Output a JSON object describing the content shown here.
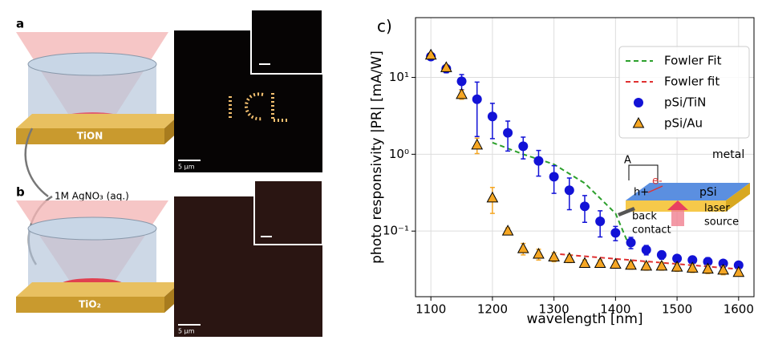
{
  "panels": {
    "a": {
      "label": "a",
      "substrate": "TiON",
      "scale_bar": "5 µm"
    },
    "reagent": "1M AgNO₃ (aq.)",
    "b": {
      "label": "b",
      "substrate": "TiO₂",
      "scale_bar": "5 µm"
    }
  },
  "chart_data": {
    "type": "scatter",
    "panel_label": "c)",
    "xlabel": "wavelength [nm]",
    "ylabel": "photo responsivity |PR| [mA/W]",
    "xlim": [
      1075,
      1625
    ],
    "xticks": [
      1100,
      1200,
      1300,
      1400,
      1500,
      1600
    ],
    "ylim": [
      0.014,
      60
    ],
    "yscale": "log",
    "yticks": [
      {
        "value": 0.1,
        "label": "10⁻¹"
      },
      {
        "value": 1,
        "label": "10⁰"
      },
      {
        "value": 10,
        "label": "10¹"
      }
    ],
    "grid": true,
    "legend": "upper right",
    "x": [
      1100,
      1125,
      1150,
      1175,
      1200,
      1225,
      1250,
      1275,
      1300,
      1325,
      1350,
      1375,
      1400,
      1425,
      1450,
      1475,
      1500,
      1525,
      1550,
      1575,
      1600
    ],
    "series": [
      {
        "name": "Fowler Fit",
        "color": "#2ca02c",
        "style": "dashed",
        "x": [
          1200,
          1250,
          1300,
          1350,
          1400,
          1425
        ],
        "values": [
          1.42,
          1.0,
          0.74,
          0.42,
          0.17,
          0.057
        ]
      },
      {
        "name": "Fowler fit",
        "color": "#e03030",
        "style": "dashed",
        "x": [
          1310,
          1600
        ],
        "values": [
          0.05,
          0.032
        ]
      },
      {
        "name": "pSi/TiN",
        "color": "#1212d6",
        "marker": "circle",
        "values": [
          18.7,
          13,
          8.9,
          5.2,
          3.1,
          1.9,
          1.27,
          0.82,
          0.51,
          0.34,
          0.21,
          0.134,
          0.095,
          0.071,
          0.057,
          0.049,
          0.044,
          0.042,
          0.04,
          0.038,
          0.036
        ],
        "errors": [
          1.5,
          1.5,
          2,
          3.5,
          1.5,
          0.8,
          0.4,
          0.3,
          0.2,
          0.15,
          0.08,
          0.05,
          0.02,
          0.012,
          0.008,
          0.006,
          0.005,
          0.005,
          0.005,
          0.004,
          0.004
        ]
      },
      {
        "name": "pSi/Au",
        "color": "#f5a623",
        "marker": "triangle",
        "values": [
          19.5,
          13.4,
          6.0,
          1.32,
          0.27,
          0.1,
          0.059,
          0.05,
          0.046,
          0.044,
          0.038,
          0.038,
          0.037,
          0.036,
          0.035,
          0.035,
          0.034,
          0.033,
          0.032,
          0.031,
          0.029
        ],
        "errors": [
          1.5,
          1,
          0.8,
          0.3,
          0.1,
          0.01,
          0.01,
          0.008,
          0.006,
          0.005,
          0.004,
          0.004,
          0.004,
          0.004,
          0.004,
          0.004,
          0.004,
          0.004,
          0.004,
          0.004,
          0.003
        ]
      }
    ],
    "inset_labels": [
      "A",
      "e-",
      "h+",
      "pSi",
      "metal",
      "back",
      "contact",
      "laser",
      "source"
    ]
  }
}
